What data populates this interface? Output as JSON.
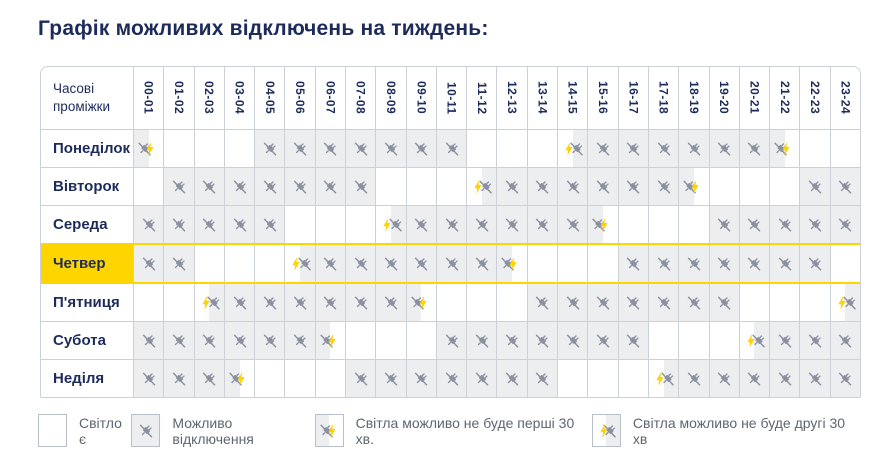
{
  "page": {
    "title": "Графік можливих відключень на тиждень:"
  },
  "schedule_table": {
    "corner_label": "Часові проміжки",
    "time_slots": [
      "00-01",
      "01-02",
      "02-03",
      "03-04",
      "04-05",
      "05-06",
      "06-07",
      "07-08",
      "08-09",
      "09-10",
      "10-11",
      "11-12",
      "12-13",
      "13-14",
      "14-15",
      "15-16",
      "16-17",
      "17-18",
      "18-19",
      "19-20",
      "20-21",
      "21-22",
      "22-23",
      "23-24"
    ],
    "days": [
      {
        "label": "Понеділок",
        "highlighted": false,
        "slots": [
          "first30",
          "on",
          "on",
          "on",
          "off",
          "off",
          "off",
          "off",
          "off",
          "off",
          "off",
          "on",
          "on",
          "on",
          "second30",
          "off",
          "off",
          "off",
          "off",
          "off",
          "off",
          "first30",
          "on",
          "on"
        ]
      },
      {
        "label": "Вівторок",
        "highlighted": false,
        "slots": [
          "on",
          "off",
          "off",
          "off",
          "off",
          "off",
          "off",
          "off",
          "on",
          "on",
          "on",
          "second30",
          "off",
          "off",
          "off",
          "off",
          "off",
          "off",
          "first30",
          "on",
          "on",
          "on",
          "off",
          "off"
        ]
      },
      {
        "label": "Середа",
        "highlighted": false,
        "slots": [
          "off",
          "off",
          "off",
          "off",
          "off",
          "on",
          "on",
          "on",
          "second30",
          "off",
          "off",
          "off",
          "off",
          "off",
          "off",
          "first30",
          "on",
          "on",
          "on",
          "off",
          "off",
          "off",
          "off",
          "off"
        ]
      },
      {
        "label": "Четвер",
        "highlighted": true,
        "slots": [
          "off",
          "off",
          "on",
          "on",
          "on",
          "second30",
          "off",
          "off",
          "off",
          "off",
          "off",
          "off",
          "first30",
          "on",
          "on",
          "on",
          "off",
          "off",
          "off",
          "off",
          "off",
          "off",
          "off",
          "on"
        ]
      },
      {
        "label": "П'ятниця",
        "highlighted": false,
        "slots": [
          "on",
          "on",
          "second30",
          "off",
          "off",
          "off",
          "off",
          "off",
          "off",
          "first30",
          "on",
          "on",
          "on",
          "off",
          "off",
          "off",
          "off",
          "off",
          "off",
          "off",
          "on",
          "on",
          "on",
          "second30"
        ]
      },
      {
        "label": "Субота",
        "highlighted": false,
        "slots": [
          "off",
          "off",
          "off",
          "off",
          "off",
          "off",
          "first30",
          "on",
          "on",
          "on",
          "off",
          "off",
          "off",
          "off",
          "off",
          "off",
          "off",
          "on",
          "on",
          "on",
          "second30",
          "off",
          "off",
          "off"
        ]
      },
      {
        "label": "Неділя",
        "highlighted": false,
        "slots": [
          "off",
          "off",
          "off",
          "first30",
          "on",
          "on",
          "on",
          "off",
          "off",
          "off",
          "off",
          "off",
          "off",
          "off",
          "on",
          "on",
          "on",
          "second30",
          "off",
          "off",
          "off",
          "off",
          "off",
          "off"
        ]
      }
    ]
  },
  "legend": {
    "items": [
      {
        "type": "on",
        "label": "Світло є"
      },
      {
        "type": "off",
        "label": "Можливо відключення"
      },
      {
        "type": "first30",
        "label": "Світла можливо не буде перші 30 хв."
      },
      {
        "type": "second30",
        "label": "Світла можливо не буде другі 30 хв"
      }
    ]
  },
  "colors": {
    "title_text": "#1d2b5b",
    "cell_outage_bg": "#eceef0",
    "outage_icon_gray": "#8b91a0",
    "highlight_yellow": "#ffd500",
    "lightning_yellow": "#ffd200",
    "table_border": "#ccd0d7",
    "legend_text": "#5f6570"
  }
}
